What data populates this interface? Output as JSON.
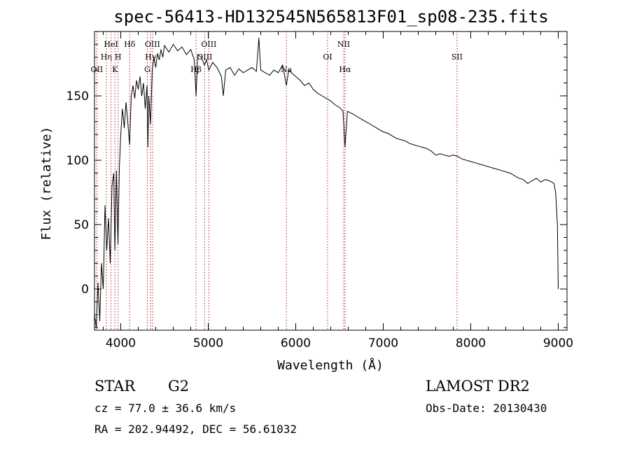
{
  "chart_data": {
    "type": "line",
    "title": "spec-56413-HD132545N565813F01_sp08-235.fits",
    "xlabel": "Wavelength (Å)",
    "ylabel": "Flux (relative)",
    "xlim": [
      3700,
      9100
    ],
    "ylim": [
      -32,
      200
    ],
    "x_ticks": [
      4000,
      5000,
      6000,
      7000,
      8000,
      9000
    ],
    "y_ticks": [
      0,
      50,
      100,
      150
    ],
    "grid": false,
    "series": [
      {
        "color": "#000000",
        "points": [
          [
            3700,
            -20
          ],
          [
            3720,
            -30
          ],
          [
            3740,
            5
          ],
          [
            3760,
            -25
          ],
          [
            3780,
            20
          ],
          [
            3800,
            0
          ],
          [
            3820,
            65
          ],
          [
            3840,
            30
          ],
          [
            3860,
            55
          ],
          [
            3880,
            20
          ],
          [
            3900,
            80
          ],
          [
            3920,
            90
          ],
          [
            3933,
            30
          ],
          [
            3950,
            92
          ],
          [
            3968,
            35
          ],
          [
            3985,
            95
          ],
          [
            4000,
            120
          ],
          [
            4020,
            140
          ],
          [
            4040,
            125
          ],
          [
            4060,
            145
          ],
          [
            4080,
            130
          ],
          [
            4101,
            112
          ],
          [
            4120,
            150
          ],
          [
            4140,
            158
          ],
          [
            4160,
            148
          ],
          [
            4180,
            162
          ],
          [
            4200,
            155
          ],
          [
            4220,
            165
          ],
          [
            4240,
            150
          ],
          [
            4260,
            160
          ],
          [
            4280,
            140
          ],
          [
            4300,
            158
          ],
          [
            4310,
            110
          ],
          [
            4320,
            150
          ],
          [
            4340,
            128
          ],
          [
            4360,
            170
          ],
          [
            4380,
            180
          ],
          [
            4400,
            172
          ],
          [
            4420,
            183
          ],
          [
            4440,
            178
          ],
          [
            4460,
            186
          ],
          [
            4480,
            180
          ],
          [
            4500,
            189
          ],
          [
            4550,
            184
          ],
          [
            4600,
            190
          ],
          [
            4650,
            185
          ],
          [
            4700,
            188
          ],
          [
            4750,
            182
          ],
          [
            4800,
            186
          ],
          [
            4840,
            178
          ],
          [
            4861,
            150
          ],
          [
            4880,
            182
          ],
          [
            4920,
            180
          ],
          [
            4957,
            174
          ],
          [
            4980,
            178
          ],
          [
            5007,
            170
          ],
          [
            5050,
            176
          ],
          [
            5100,
            172
          ],
          [
            5150,
            165
          ],
          [
            5172,
            150
          ],
          [
            5200,
            170
          ],
          [
            5250,
            172
          ],
          [
            5300,
            166
          ],
          [
            5350,
            171
          ],
          [
            5400,
            168
          ],
          [
            5450,
            170
          ],
          [
            5500,
            172
          ],
          [
            5550,
            169
          ],
          [
            5578,
            195
          ],
          [
            5600,
            170
          ],
          [
            5650,
            168
          ],
          [
            5700,
            166
          ],
          [
            5750,
            170
          ],
          [
            5800,
            168
          ],
          [
            5850,
            174
          ],
          [
            5893,
            158
          ],
          [
            5920,
            170
          ],
          [
            5950,
            168
          ],
          [
            6000,
            165
          ],
          [
            6050,
            162
          ],
          [
            6100,
            158
          ],
          [
            6150,
            160
          ],
          [
            6200,
            155
          ],
          [
            6250,
            152
          ],
          [
            6300,
            150
          ],
          [
            6350,
            148
          ],
          [
            6400,
            146
          ],
          [
            6450,
            143
          ],
          [
            6500,
            141
          ],
          [
            6540,
            138
          ],
          [
            6563,
            110
          ],
          [
            6590,
            138
          ],
          [
            6650,
            136
          ],
          [
            6700,
            134
          ],
          [
            6750,
            132
          ],
          [
            6800,
            130
          ],
          [
            6850,
            128
          ],
          [
            6900,
            126
          ],
          [
            6950,
            124
          ],
          [
            7000,
            122
          ],
          [
            7050,
            121
          ],
          [
            7100,
            119
          ],
          [
            7150,
            117
          ],
          [
            7200,
            116
          ],
          [
            7250,
            115
          ],
          [
            7300,
            113
          ],
          [
            7350,
            112
          ],
          [
            7400,
            111
          ],
          [
            7450,
            110
          ],
          [
            7500,
            109
          ],
          [
            7550,
            107
          ],
          [
            7600,
            104
          ],
          [
            7650,
            105
          ],
          [
            7700,
            104
          ],
          [
            7750,
            103
          ],
          [
            7800,
            104
          ],
          [
            7850,
            103
          ],
          [
            7900,
            101
          ],
          [
            7950,
            100
          ],
          [
            8000,
            99
          ],
          [
            8050,
            98
          ],
          [
            8100,
            97
          ],
          [
            8150,
            96
          ],
          [
            8200,
            95
          ],
          [
            8250,
            94
          ],
          [
            8300,
            93
          ],
          [
            8350,
            92
          ],
          [
            8400,
            91
          ],
          [
            8450,
            90
          ],
          [
            8500,
            88
          ],
          [
            8550,
            86
          ],
          [
            8600,
            85
          ],
          [
            8650,
            82
          ],
          [
            8700,
            84
          ],
          [
            8750,
            86
          ],
          [
            8800,
            83
          ],
          [
            8850,
            85
          ],
          [
            8900,
            84
          ],
          [
            8950,
            82
          ],
          [
            8970,
            75
          ],
          [
            8990,
            50
          ],
          [
            9000,
            0
          ]
        ]
      }
    ],
    "spectral_lines": [
      {
        "wave": 3727,
        "label": "OII",
        "row": 3
      },
      {
        "wave": 3835,
        "label": "Hη",
        "row": 2
      },
      {
        "wave": 3889,
        "label": "HeI",
        "row": 1
      },
      {
        "wave": 3934,
        "label": "K",
        "row": 3
      },
      {
        "wave": 3969,
        "label": "H",
        "row": 2
      },
      {
        "wave": 4102,
        "label": "Hδ",
        "row": 1
      },
      {
        "wave": 4304,
        "label": "G",
        "row": 3
      },
      {
        "wave": 4341,
        "label": "Hγ",
        "row": 2
      },
      {
        "wave": 4363,
        "label": "OIII",
        "row": 1
      },
      {
        "wave": 4861,
        "label": "Hβ",
        "row": 3
      },
      {
        "wave": 4959,
        "label": "OIII",
        "row": 2
      },
      {
        "wave": 5007,
        "label": "OIII",
        "row": 1
      },
      {
        "wave": 5893,
        "label": "Na",
        "row": 3
      },
      {
        "wave": 6364,
        "label": "OI",
        "row": 2
      },
      {
        "wave": 6548,
        "label": "NII",
        "row": 1
      },
      {
        "wave": 6563,
        "label": "Hα",
        "row": 3
      },
      {
        "wave": 7843,
        "label": "SII",
        "row": 2
      }
    ]
  },
  "info": {
    "object_class": "STAR",
    "subclass": "G2",
    "survey": "LAMOST DR2",
    "cz": "cz = 77.0 ± 36.6 km/s",
    "obs_date": "Obs-Date: 20130430",
    "coords": "RA = 202.94492, DEC =  56.61032"
  }
}
